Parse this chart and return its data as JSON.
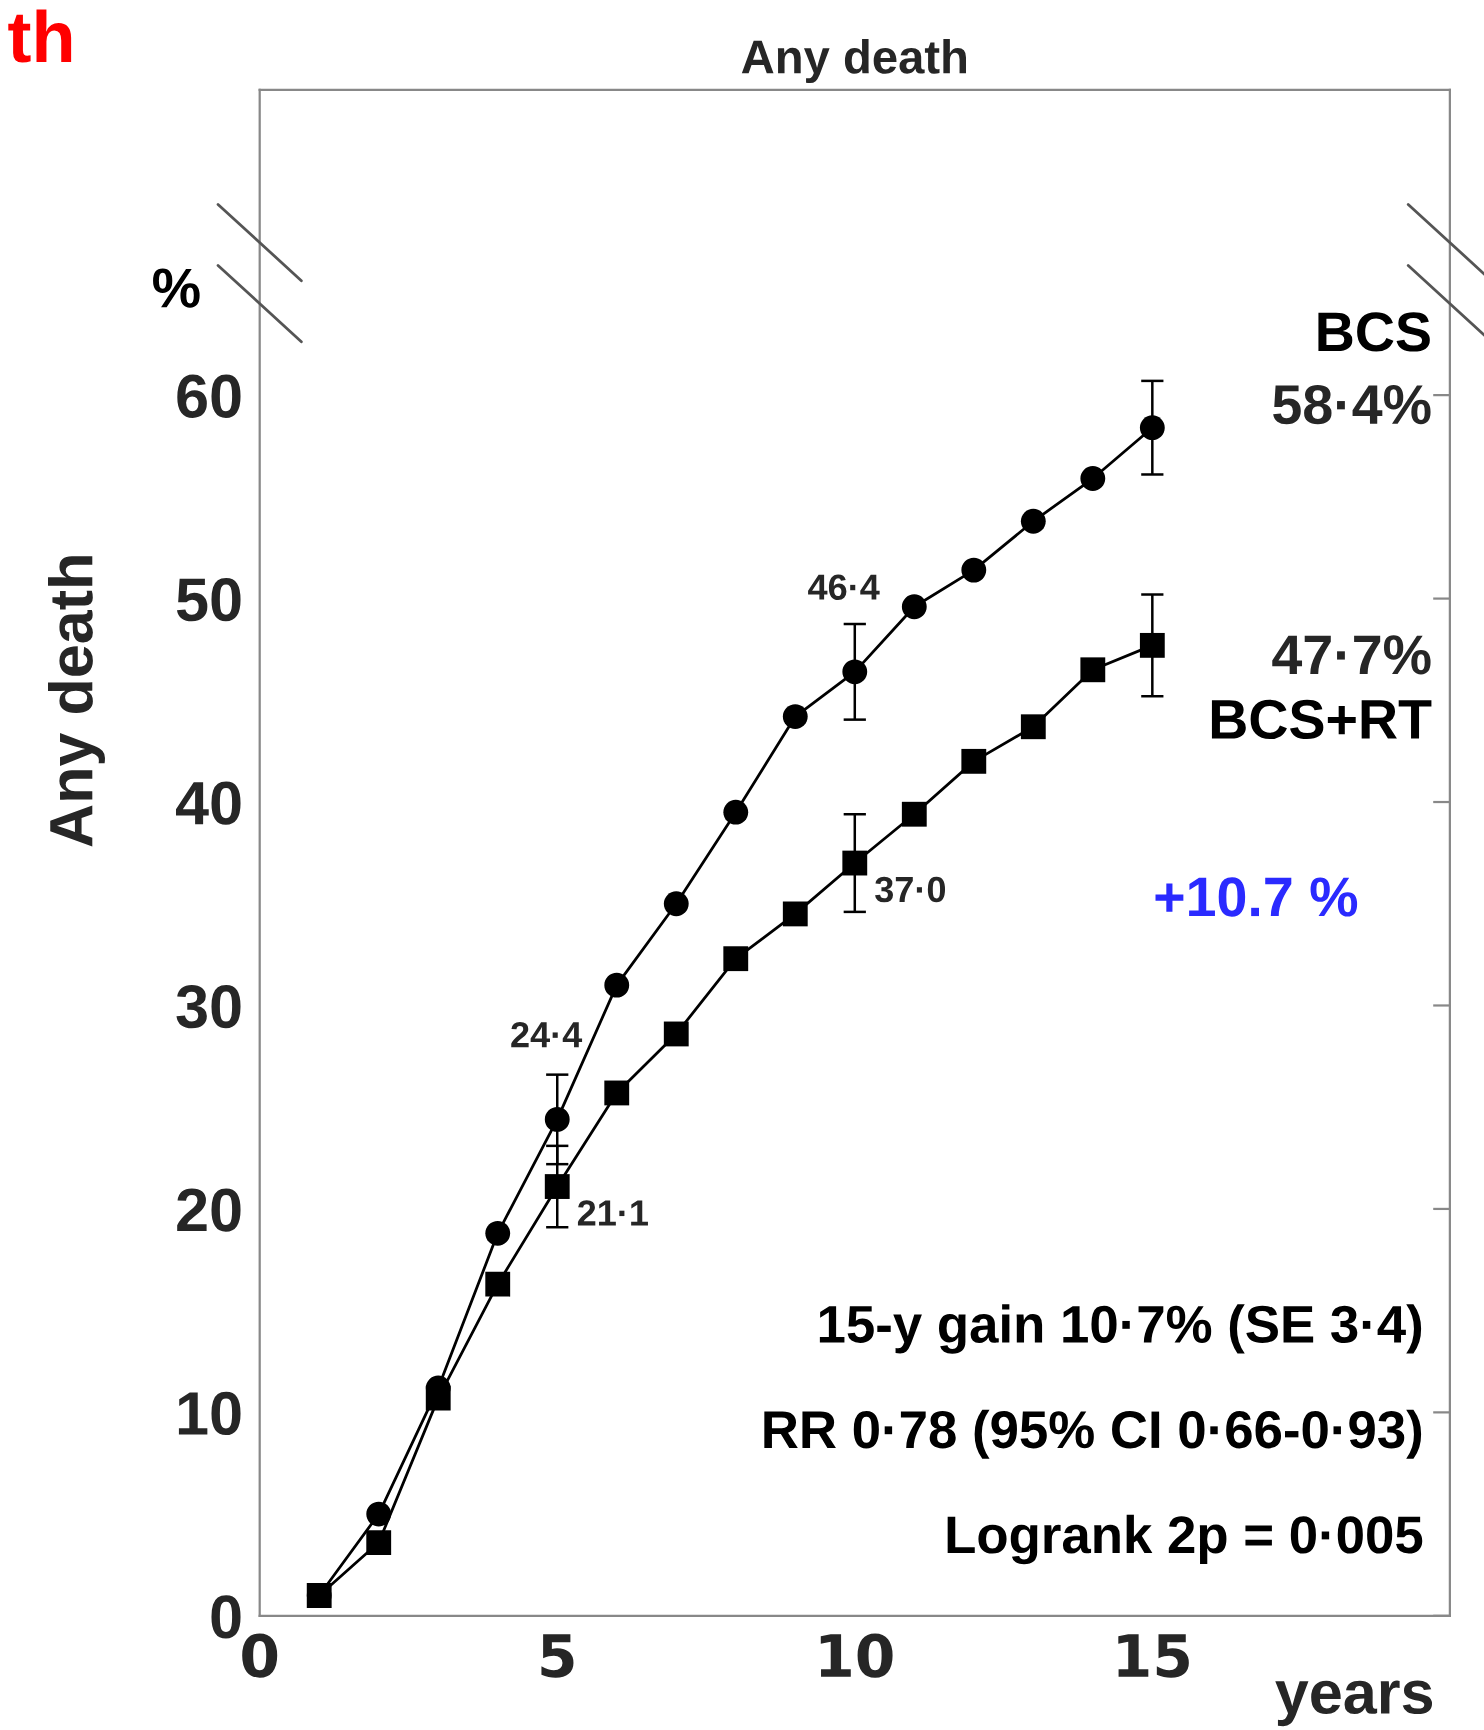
{
  "chart_data": {
    "type": "line",
    "title": "Any death",
    "xlabel": "years",
    "ylabel": "Any death",
    "x": [
      1,
      2,
      3,
      4,
      5,
      6,
      7,
      8,
      9,
      10,
      11,
      12,
      13,
      14,
      15
    ],
    "xlim": [
      0,
      20
    ],
    "xticks": [
      0,
      5,
      10,
      15
    ],
    "ylim": [
      0,
      75
    ],
    "yticks": [
      0,
      10,
      20,
      30,
      40,
      50,
      60
    ],
    "series": [
      {
        "name": "BCS",
        "color": "#000000",
        "marker": "circle",
        "values": [
          1.0,
          5.0,
          11.2,
          18.8,
          24.4,
          31.0,
          35.0,
          39.5,
          44.2,
          46.4,
          49.6,
          51.4,
          53.8,
          55.9,
          58.4
        ],
        "errors": [
          null,
          null,
          null,
          null,
          2.2,
          null,
          null,
          null,
          null,
          2.35,
          null,
          null,
          null,
          null,
          2.3
        ],
        "value_labels": [
          null,
          null,
          null,
          null,
          "24·4",
          null,
          null,
          null,
          null,
          "46·4",
          null,
          null,
          null,
          null,
          null
        ]
      },
      {
        "name": "BCS+RT",
        "color": "#000000",
        "marker": "square",
        "values": [
          1.0,
          3.6,
          10.7,
          16.3,
          21.1,
          25.7,
          28.6,
          32.3,
          34.5,
          37.0,
          39.4,
          42.0,
          43.7,
          46.5,
          47.7
        ],
        "errors": [
          null,
          null,
          null,
          null,
          2.0,
          null,
          null,
          null,
          null,
          2.4,
          null,
          null,
          null,
          null,
          2.5
        ],
        "value_labels": [
          null,
          null,
          null,
          null,
          "21·1",
          null,
          null,
          null,
          null,
          "37·0",
          null,
          null,
          null,
          null,
          null
        ]
      }
    ],
    "annotations": [
      {
        "text": "58·4%",
        "x": 15,
        "y": 58.4
      },
      {
        "text": "47·7%",
        "x": 15,
        "y": 47.7
      },
      "+10.7 %",
      "15-y gain 10·7% (SE 3·4)",
      "RR 0·78 (95% CI 0·66-0·93)",
      "Logrank 2p = 0·005",
      "%",
      "th"
    ],
    "grid": false,
    "line_style": "solid"
  }
}
